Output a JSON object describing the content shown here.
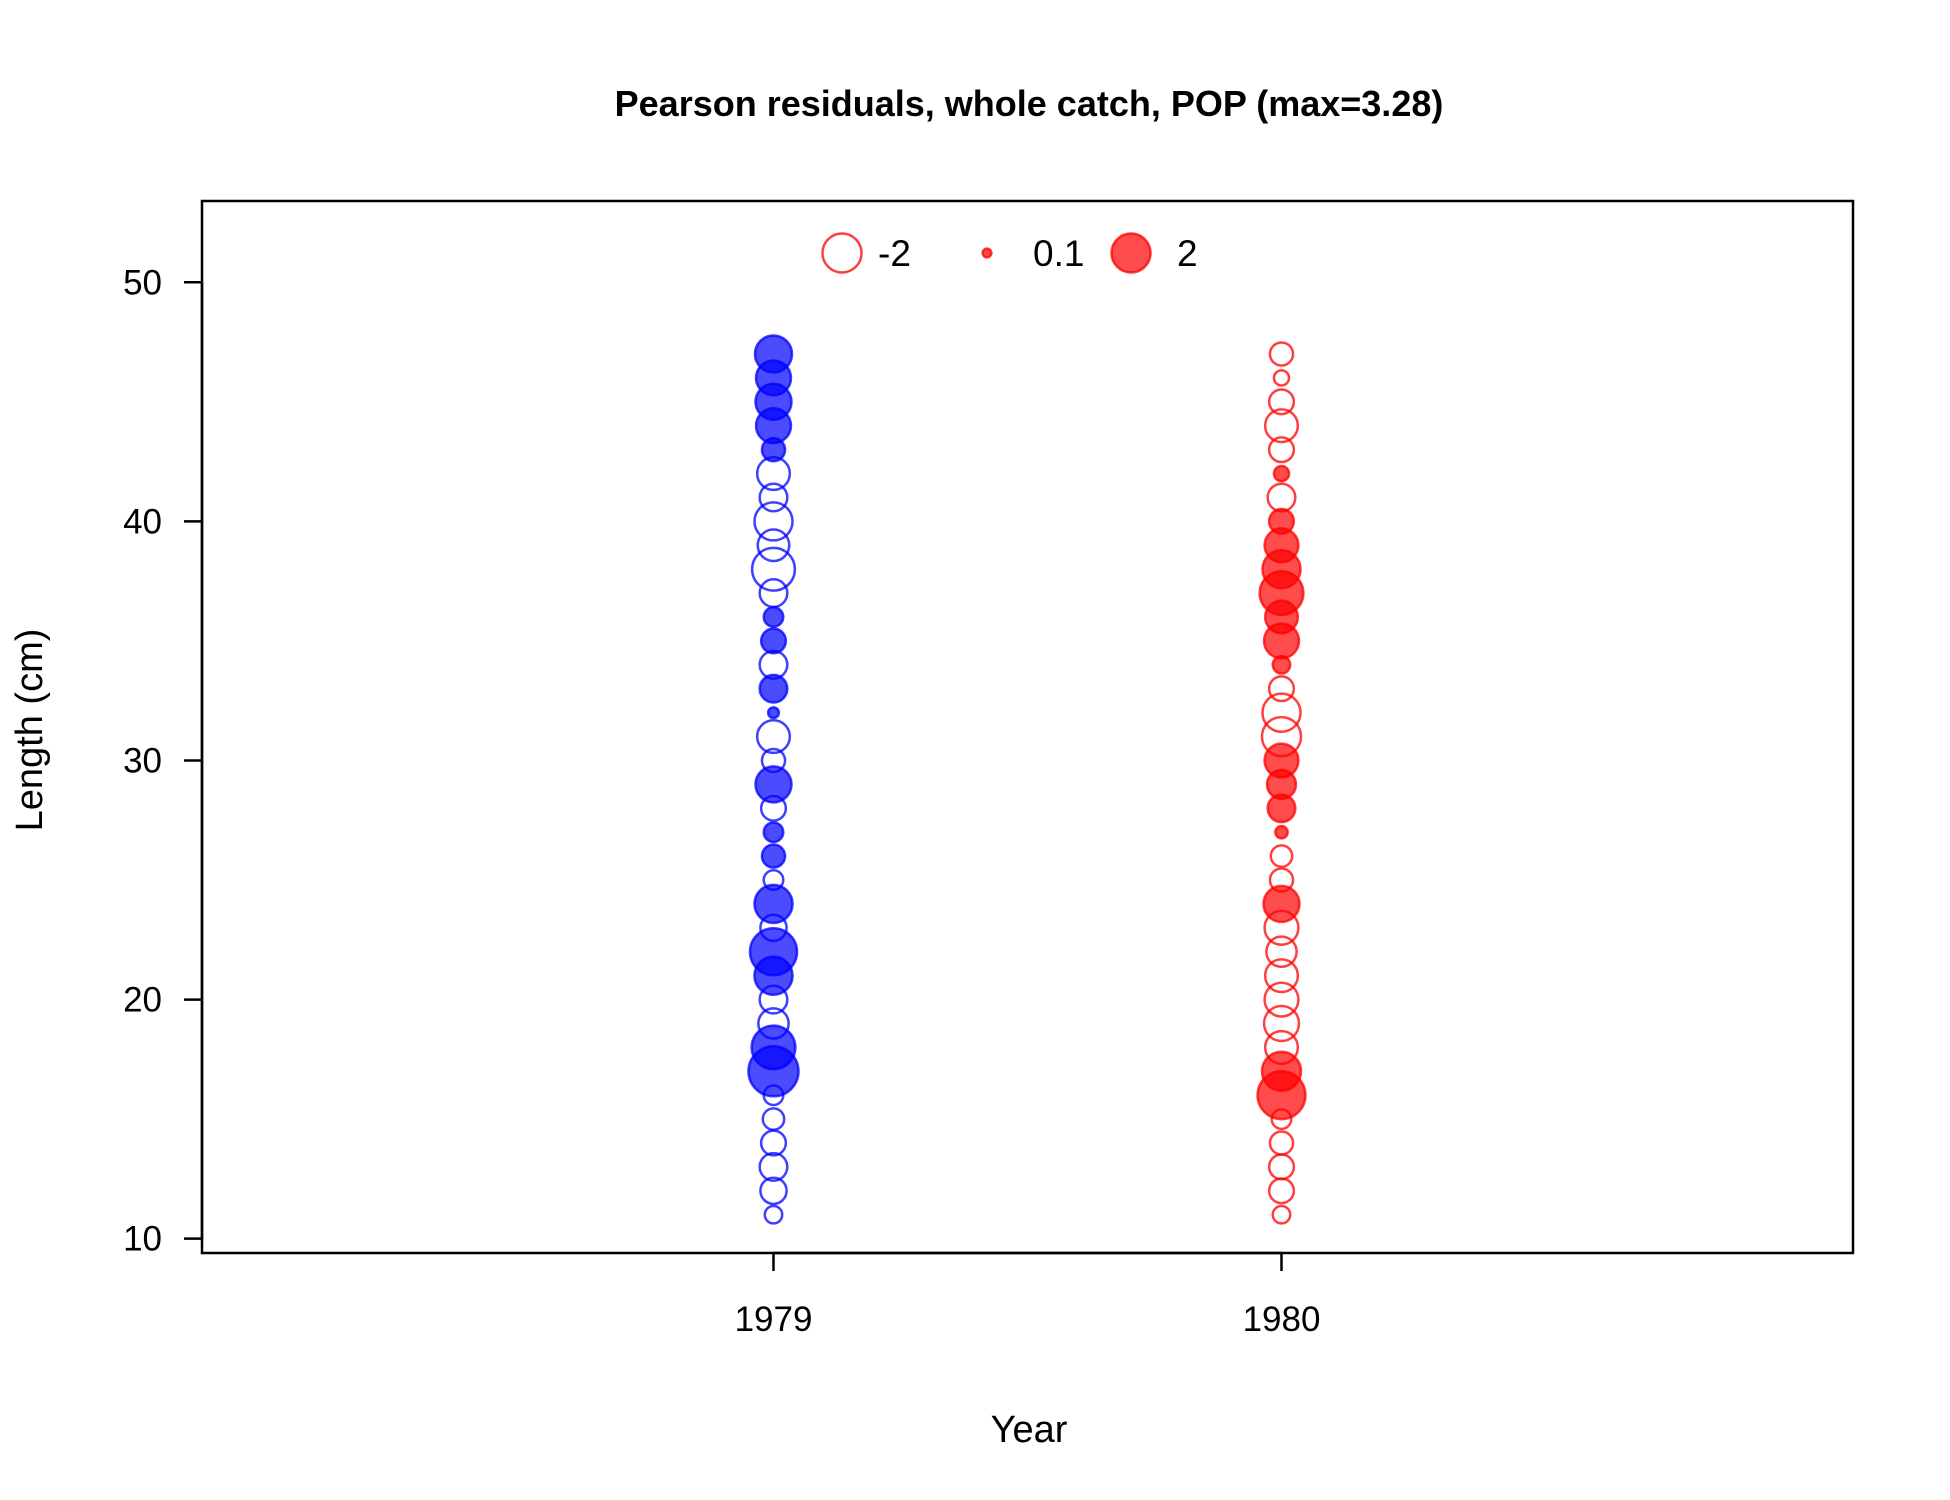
{
  "chart_data": {
    "type": "scatter",
    "subtype": "bubble",
    "title": "Pearson residuals, whole catch, POP (max=3.28)",
    "xlabel": "Year",
    "ylabel": "Length (cm)",
    "xlim": [
      1977.875,
      1981.125
    ],
    "ylim": [
      9.4,
      53.4
    ],
    "x_ticks": [
      1979,
      1980
    ],
    "x_tick_labels": [
      "1979",
      "1980"
    ],
    "y_ticks": [
      10,
      20,
      30,
      40,
      50
    ],
    "y_tick_labels": [
      "10",
      "20",
      "30",
      "40",
      "50"
    ],
    "grid": false,
    "legend": {
      "position": "top",
      "entries": [
        {
          "label": "-2",
          "value": -2,
          "style": "open"
        },
        {
          "label": "0.1",
          "value": 0.1,
          "style": "filled"
        },
        {
          "label": "2",
          "value": 2,
          "style": "filled"
        }
      ]
    },
    "encoding": {
      "size": "absolute residual",
      "filled": "residual > 0",
      "open": "residual < 0"
    },
    "colors": {
      "1979": "#0000ff",
      "1980": "#ff0000"
    },
    "max_abs_residual": 3.28,
    "series": [
      {
        "x": 1979,
        "color": "#0000ff",
        "points": [
          {
            "length": 11,
            "residual": -0.4
          },
          {
            "length": 12,
            "residual": -0.9
          },
          {
            "length": 13,
            "residual": -1.0
          },
          {
            "length": 14,
            "residual": -0.8
          },
          {
            "length": 15,
            "residual": -0.6
          },
          {
            "length": 16,
            "residual": -0.5
          },
          {
            "length": 17,
            "residual": 3.28
          },
          {
            "length": 18,
            "residual": 2.5
          },
          {
            "length": 19,
            "residual": -1.2
          },
          {
            "length": 20,
            "residual": -1.0
          },
          {
            "length": 21,
            "residual": 1.9
          },
          {
            "length": 22,
            "residual": 2.9
          },
          {
            "length": 23,
            "residual": -0.9
          },
          {
            "length": 24,
            "residual": 1.9
          },
          {
            "length": 25,
            "residual": -0.5
          },
          {
            "length": 26,
            "residual": 0.7
          },
          {
            "length": 27,
            "residual": 0.5
          },
          {
            "length": 28,
            "residual": -0.8
          },
          {
            "length": 29,
            "residual": 1.7
          },
          {
            "length": 30,
            "residual": -0.7
          },
          {
            "length": 31,
            "residual": -1.4
          },
          {
            "length": 32,
            "residual": 0.15
          },
          {
            "length": 33,
            "residual": 1.0
          },
          {
            "length": 34,
            "residual": -1.0
          },
          {
            "length": 35,
            "residual": 0.8
          },
          {
            "length": 36,
            "residual": 0.5
          },
          {
            "length": 37,
            "residual": -1.0
          },
          {
            "length": 38,
            "residual": -2.4
          },
          {
            "length": 39,
            "residual": -1.3
          },
          {
            "length": 40,
            "residual": -1.9
          },
          {
            "length": 41,
            "residual": -1.0
          },
          {
            "length": 42,
            "residual": -1.4
          },
          {
            "length": 43,
            "residual": 0.7
          },
          {
            "length": 44,
            "residual": 1.6
          },
          {
            "length": 45,
            "residual": 1.7
          },
          {
            "length": 46,
            "residual": 1.6
          },
          {
            "length": 47,
            "residual": 1.8
          }
        ]
      },
      {
        "x": 1980,
        "color": "#ff0000",
        "points": [
          {
            "length": 11,
            "residual": -0.4
          },
          {
            "length": 12,
            "residual": -0.8
          },
          {
            "length": 13,
            "residual": -0.8
          },
          {
            "length": 14,
            "residual": -0.7
          },
          {
            "length": 15,
            "residual": -0.5
          },
          {
            "length": 16,
            "residual": 3.0
          },
          {
            "length": 17,
            "residual": 2.0
          },
          {
            "length": 18,
            "residual": -1.4
          },
          {
            "length": 19,
            "residual": -1.6
          },
          {
            "length": 20,
            "residual": -1.5
          },
          {
            "length": 21,
            "residual": -1.4
          },
          {
            "length": 22,
            "residual": -1.2
          },
          {
            "length": 23,
            "residual": -1.5
          },
          {
            "length": 24,
            "residual": 1.7
          },
          {
            "length": 25,
            "residual": -0.7
          },
          {
            "length": 26,
            "residual": -0.6
          },
          {
            "length": 27,
            "residual": 0.2
          },
          {
            "length": 28,
            "residual": 1.0
          },
          {
            "length": 29,
            "residual": 1.1
          },
          {
            "length": 30,
            "residual": 1.5
          },
          {
            "length": 31,
            "residual": -2.0
          },
          {
            "length": 32,
            "residual": -1.9
          },
          {
            "length": 33,
            "residual": -0.8
          },
          {
            "length": 34,
            "residual": 0.4
          },
          {
            "length": 35,
            "residual": 1.6
          },
          {
            "length": 36,
            "residual": 1.4
          },
          {
            "length": 37,
            "residual": 2.5
          },
          {
            "length": 38,
            "residual": 1.9
          },
          {
            "length": 39,
            "residual": 1.5
          },
          {
            "length": 40,
            "residual": 0.8
          },
          {
            "length": 41,
            "residual": -1.0
          },
          {
            "length": 42,
            "residual": 0.3
          },
          {
            "length": 43,
            "residual": -0.8
          },
          {
            "length": 44,
            "residual": -1.4
          },
          {
            "length": 45,
            "residual": -0.8
          },
          {
            "length": 46,
            "residual": -0.3
          },
          {
            "length": 47,
            "residual": -0.7
          }
        ]
      }
    ]
  }
}
